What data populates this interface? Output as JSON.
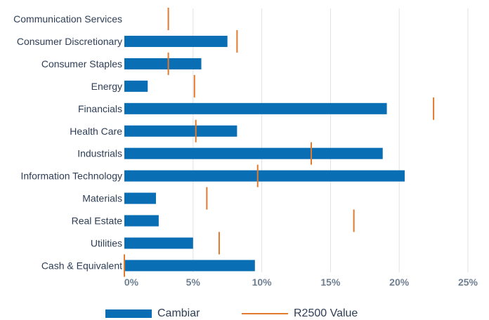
{
  "chart_data": {
    "type": "bar",
    "orientation": "horizontal",
    "categories": [
      "Communication Services",
      "Consumer Discretionary",
      "Consumer Staples",
      "Energy",
      "Financials",
      "Health Care",
      "Industrials",
      "Information Technology",
      "Materials",
      "Real Estate",
      "Utilities",
      "Cash & Equivalent"
    ],
    "series": [
      {
        "name": "Cambiar",
        "type": "bar",
        "color": "#0a6eb4",
        "values": [
          0,
          7.5,
          5.6,
          1.7,
          19.1,
          8.2,
          18.8,
          20.4,
          2.3,
          2.5,
          5.0,
          9.5
        ]
      },
      {
        "name": "R2500 Value",
        "type": "marker",
        "color": "#e27a2d",
        "values": [
          3.2,
          8.2,
          3.2,
          5.1,
          22.5,
          5.2,
          13.6,
          9.7,
          6.0,
          16.7,
          6.9,
          0
        ]
      }
    ],
    "xlim": [
      0,
      25
    ],
    "x_ticks": [
      "0%",
      "5%",
      "10%",
      "15%",
      "20%",
      "25%"
    ],
    "grid": "vertical",
    "legend": "bottom",
    "xlabel": "",
    "ylabel": "",
    "title": ""
  },
  "legend": {
    "bar_label": "Cambiar",
    "line_label": "R2500 Value"
  }
}
